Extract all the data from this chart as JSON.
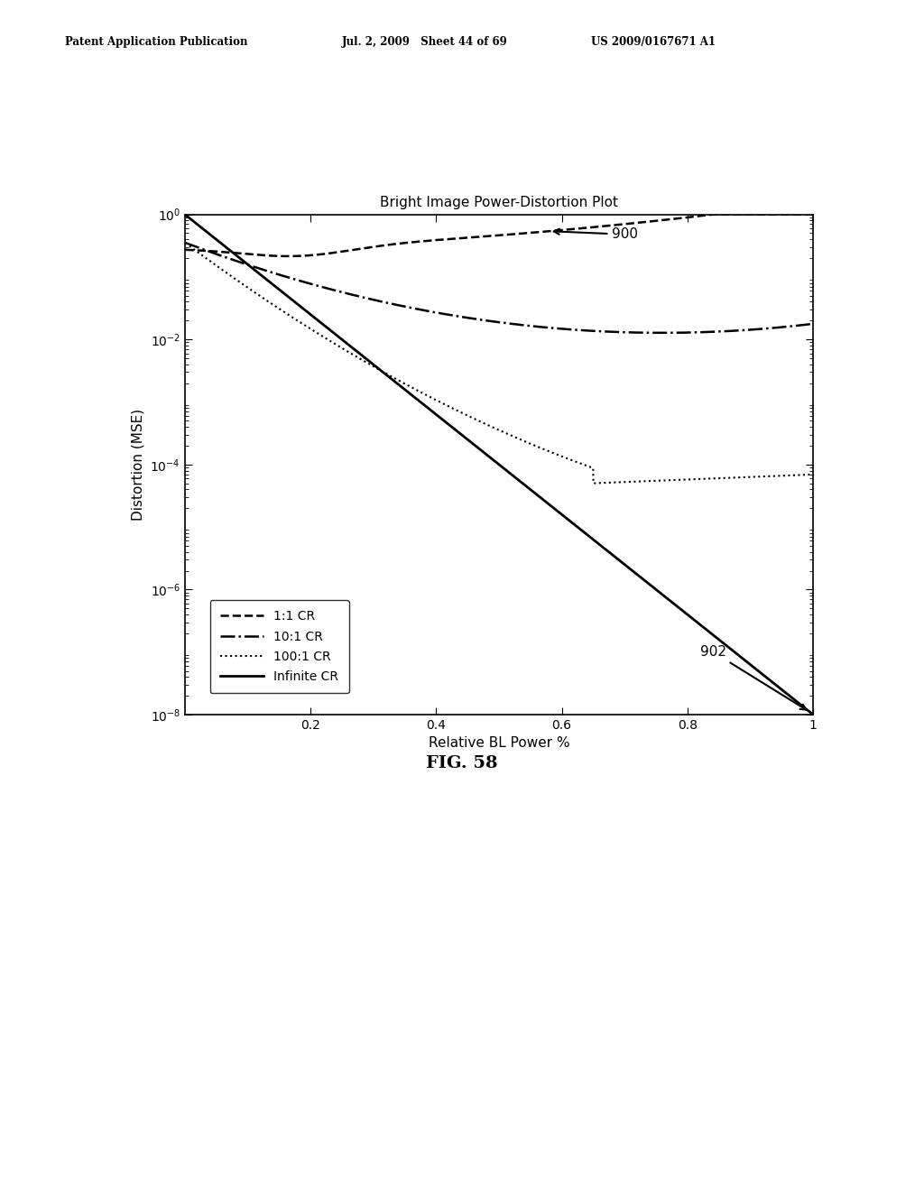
{
  "title": "Bright Image Power-Distortion Plot",
  "xlabel": "Relative BL Power %",
  "ylabel": "Distortion (MSE)",
  "xlim": [
    0.0,
    1.0
  ],
  "header_left": "Patent Application Publication",
  "header_mid": "Jul. 2, 2009   Sheet 44 of 69",
  "header_right": "US 2009/0167671 A1",
  "fig_label": "FIG. 58",
  "annotation_900": "900",
  "annotation_902": "902",
  "legend_entries": [
    "1:1 CR",
    "10:1 CR",
    "100:1 CR",
    "Infinite CR"
  ],
  "background_color": "#ffffff"
}
